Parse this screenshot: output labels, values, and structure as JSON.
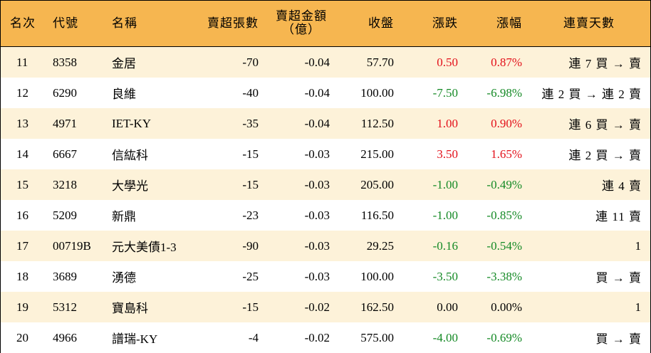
{
  "headers": {
    "rank": "名次",
    "code": "代號",
    "name": "名稱",
    "sell_lots": "賣超張數",
    "sell_amount_line1": "賣超金額",
    "sell_amount_line2": "（億）",
    "close": "收盤",
    "change": "漲跌",
    "change_pct": "漲幅",
    "streak": "連賣天數"
  },
  "colors": {
    "header_bg": "#f6b650",
    "odd_row_bg": "#fdf2d9",
    "up": "#e3101a",
    "down": "#158a26"
  },
  "rows": [
    {
      "rank": "11",
      "code": "8358",
      "name": "金居",
      "sell_lots": "-70",
      "sell_amount": "-0.04",
      "close": "57.70",
      "change": "0.50",
      "change_pct": "0.87%",
      "direction": "up",
      "streak": "連 7 買 → 賣"
    },
    {
      "rank": "12",
      "code": "6290",
      "name": "良維",
      "sell_lots": "-40",
      "sell_amount": "-0.04",
      "close": "100.00",
      "change": "-7.50",
      "change_pct": "-6.98%",
      "direction": "down",
      "streak": "連 2 買 → 連 2 賣"
    },
    {
      "rank": "13",
      "code": "4971",
      "name": "IET-KY",
      "sell_lots": "-35",
      "sell_amount": "-0.04",
      "close": "112.50",
      "change": "1.00",
      "change_pct": "0.90%",
      "direction": "up",
      "streak": "連 6 買 → 賣"
    },
    {
      "rank": "14",
      "code": "6667",
      "name": "信紘科",
      "sell_lots": "-15",
      "sell_amount": "-0.03",
      "close": "215.00",
      "change": "3.50",
      "change_pct": "1.65%",
      "direction": "up",
      "streak": "連 2 買 → 賣"
    },
    {
      "rank": "15",
      "code": "3218",
      "name": "大學光",
      "sell_lots": "-15",
      "sell_amount": "-0.03",
      "close": "205.00",
      "change": "-1.00",
      "change_pct": "-0.49%",
      "direction": "down",
      "streak": "連 4 賣"
    },
    {
      "rank": "16",
      "code": "5209",
      "name": "新鼎",
      "sell_lots": "-23",
      "sell_amount": "-0.03",
      "close": "116.50",
      "change": "-1.00",
      "change_pct": "-0.85%",
      "direction": "down",
      "streak": "連 11 賣"
    },
    {
      "rank": "17",
      "code": "00719B",
      "name": "元大美債1-3",
      "sell_lots": "-90",
      "sell_amount": "-0.03",
      "close": "29.25",
      "change": "-0.16",
      "change_pct": "-0.54%",
      "direction": "down",
      "streak": "1"
    },
    {
      "rank": "18",
      "code": "3689",
      "name": "湧德",
      "sell_lots": "-25",
      "sell_amount": "-0.03",
      "close": "100.00",
      "change": "-3.50",
      "change_pct": "-3.38%",
      "direction": "down",
      "streak": "買 → 賣"
    },
    {
      "rank": "19",
      "code": "5312",
      "name": "寶島科",
      "sell_lots": "-15",
      "sell_amount": "-0.02",
      "close": "162.50",
      "change": "0.00",
      "change_pct": "0.00%",
      "direction": "zero",
      "streak": "1"
    },
    {
      "rank": "20",
      "code": "4966",
      "name": "譜瑞-KY",
      "sell_lots": "-4",
      "sell_amount": "-0.02",
      "close": "575.00",
      "change": "-4.00",
      "change_pct": "-0.69%",
      "direction": "down",
      "streak": "買 → 賣"
    }
  ]
}
